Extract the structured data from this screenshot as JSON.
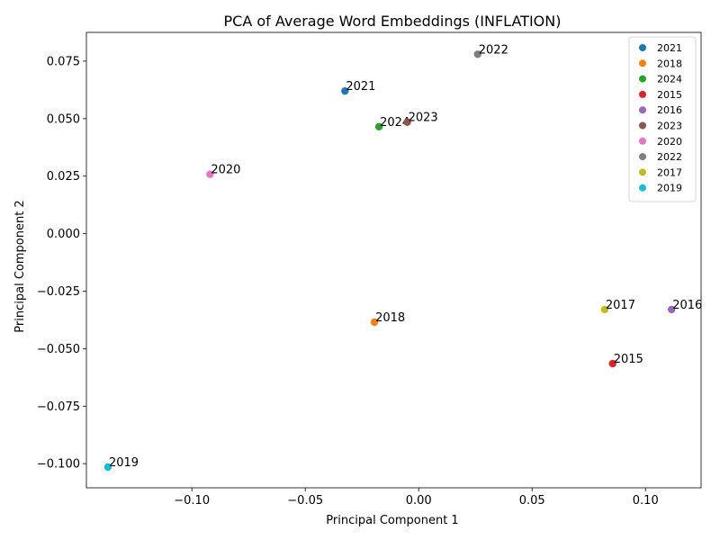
{
  "chart_data": {
    "type": "scatter",
    "title": "PCA of Average Word Embeddings (INFLATION)",
    "xlabel": "Principal Component 1",
    "ylabel": "Principal Component 2",
    "xlim": [
      -0.1465,
      0.1245
    ],
    "ylim": [
      -0.1105,
      0.0875
    ],
    "xticks": [
      -0.1,
      -0.05,
      0.0,
      0.05,
      0.1
    ],
    "xtick_labels": [
      "−0.10",
      "−0.05",
      "0.00",
      "0.05",
      "0.10"
    ],
    "yticks": [
      -0.1,
      -0.075,
      -0.05,
      -0.025,
      0.0,
      0.025,
      0.05,
      0.075
    ],
    "ytick_labels": [
      "−0.100",
      "−0.075",
      "−0.050",
      "−0.025",
      "0.000",
      "0.025",
      "0.050",
      "0.075"
    ],
    "grid": false,
    "legend_position": "top-right",
    "series": [
      {
        "name": "2021",
        "color": "#1f77b4",
        "x": -0.0325,
        "y": 0.062,
        "label": "2021"
      },
      {
        "name": "2018",
        "color": "#ff7f0e",
        "x": -0.0195,
        "y": -0.0385,
        "label": "2018"
      },
      {
        "name": "2024",
        "color": "#2ca02c",
        "x": -0.0175,
        "y": 0.0465,
        "label": "2024"
      },
      {
        "name": "2015",
        "color": "#d62728",
        "x": 0.0855,
        "y": -0.0565,
        "label": "2015"
      },
      {
        "name": "2016",
        "color": "#9467bd",
        "x": 0.1115,
        "y": -0.033,
        "label": "2016"
      },
      {
        "name": "2023",
        "color": "#8c564b",
        "x": -0.005,
        "y": 0.0485,
        "label": "2023"
      },
      {
        "name": "2020",
        "color": "#e377c2",
        "x": -0.092,
        "y": 0.0258,
        "label": "2020"
      },
      {
        "name": "2022",
        "color": "#7f7f7f",
        "x": 0.026,
        "y": 0.078,
        "label": "2022"
      },
      {
        "name": "2017",
        "color": "#bcbd22",
        "x": 0.082,
        "y": -0.033,
        "label": "2017"
      },
      {
        "name": "2019",
        "color": "#17becf",
        "x": -0.137,
        "y": -0.1015,
        "label": "2019"
      }
    ]
  }
}
